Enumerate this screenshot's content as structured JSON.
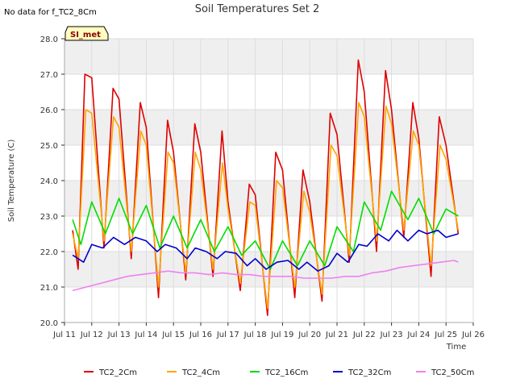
{
  "header": {
    "no_data_note": "No data for f_TC2_8Cm"
  },
  "badge": {
    "label": "SI_met",
    "fill": "#ffffc0",
    "text_color": "#8b0000"
  },
  "chart_data": {
    "type": "line",
    "title": "Soil Temperatures Set 2",
    "xlabel": "Time",
    "ylabel": "Soil Temperature (C)",
    "xlim": [
      11,
      26
    ],
    "ylim": [
      20.0,
      28.0
    ],
    "x_ticks": [
      11,
      12,
      13,
      14,
      15,
      16,
      17,
      18,
      19,
      20,
      21,
      22,
      23,
      24,
      25,
      26
    ],
    "x_tick_labels": [
      "Jul 11",
      "Jul 12",
      "Jul 13",
      "Jul 14",
      "Jul 15",
      "Jul 16",
      "Jul 17",
      "Jul 18",
      "Jul 19",
      "Jul 20",
      "Jul 21",
      "Jul 22",
      "Jul 23",
      "Jul 24",
      "Jul 25",
      "Jul 26"
    ],
    "y_ticks": [
      20.0,
      21.0,
      22.0,
      23.0,
      24.0,
      25.0,
      26.0,
      27.0,
      28.0
    ],
    "y_tick_labels": [
      "20.0",
      "21.0",
      "22.0",
      "23.0",
      "24.0",
      "25.0",
      "26.0",
      "27.0",
      "28.0"
    ],
    "grid": true,
    "background_bands": true,
    "legend_position": "bottom-center",
    "series": [
      {
        "name": "TC2_2Cm",
        "color": "#dd0000",
        "x": [
          11.3,
          11.5,
          11.75,
          12.0,
          12.45,
          12.78,
          13.0,
          13.45,
          13.78,
          14.0,
          14.45,
          14.78,
          15.0,
          15.45,
          15.78,
          16.0,
          16.45,
          16.78,
          17.0,
          17.45,
          17.78,
          18.0,
          18.45,
          18.75,
          19.0,
          19.45,
          19.75,
          20.0,
          20.45,
          20.75,
          21.0,
          21.45,
          21.78,
          22.0,
          22.45,
          22.78,
          23.0,
          23.45,
          23.78,
          24.0,
          24.45,
          24.75,
          25.0,
          25.45
        ],
        "y": [
          22.6,
          21.5,
          27.0,
          26.9,
          22.1,
          26.6,
          26.3,
          21.8,
          26.2,
          25.5,
          20.7,
          25.7,
          24.8,
          21.2,
          25.6,
          24.8,
          21.3,
          25.4,
          23.4,
          20.9,
          23.9,
          23.6,
          20.2,
          24.8,
          24.3,
          20.7,
          24.3,
          23.4,
          20.6,
          25.9,
          25.3,
          21.7,
          27.4,
          26.5,
          22.0,
          27.1,
          26.0,
          22.4,
          26.2,
          25.2,
          21.3,
          25.8,
          25.0,
          22.5
        ]
      },
      {
        "name": "TC2_4Cm",
        "color": "#ffa500",
        "x": [
          11.3,
          11.5,
          11.78,
          12.0,
          12.45,
          12.8,
          13.0,
          13.45,
          13.8,
          14.0,
          14.45,
          14.8,
          15.0,
          15.45,
          15.8,
          16.0,
          16.45,
          16.8,
          17.0,
          17.45,
          17.8,
          18.0,
          18.45,
          18.78,
          19.0,
          19.45,
          19.78,
          20.0,
          20.45,
          20.78,
          21.0,
          21.45,
          21.8,
          22.0,
          22.45,
          22.8,
          23.0,
          23.45,
          23.8,
          24.0,
          24.45,
          24.78,
          25.0,
          25.45
        ],
        "y": [
          22.5,
          21.8,
          26.0,
          25.9,
          22.3,
          25.8,
          25.5,
          22.0,
          25.4,
          25.0,
          21.0,
          24.8,
          24.5,
          21.4,
          24.8,
          24.3,
          21.5,
          24.5,
          23.2,
          21.1,
          23.4,
          23.3,
          20.4,
          24.0,
          23.8,
          21.0,
          23.7,
          23.1,
          20.8,
          25.0,
          24.7,
          21.9,
          26.2,
          25.8,
          22.3,
          26.1,
          25.6,
          22.6,
          25.4,
          25.0,
          21.6,
          25.0,
          24.6,
          22.6
        ]
      },
      {
        "name": "TC2_16Cm",
        "color": "#00dd00",
        "x": [
          11.3,
          11.6,
          12.0,
          12.5,
          13.0,
          13.5,
          14.0,
          14.5,
          15.0,
          15.5,
          16.0,
          16.5,
          17.0,
          17.5,
          18.0,
          18.55,
          19.0,
          19.55,
          20.0,
          20.55,
          21.0,
          21.6,
          22.0,
          22.6,
          23.0,
          23.6,
          24.0,
          24.55,
          25.0,
          25.45
        ],
        "y": [
          22.9,
          22.2,
          23.4,
          22.5,
          23.5,
          22.5,
          23.3,
          22.1,
          23.0,
          22.1,
          22.9,
          22.0,
          22.7,
          21.9,
          22.3,
          21.5,
          22.3,
          21.6,
          22.3,
          21.6,
          22.7,
          22.0,
          23.4,
          22.6,
          23.7,
          22.9,
          23.5,
          22.5,
          23.2,
          23.0
        ]
      },
      {
        "name": "TC2_32Cm",
        "color": "#0000cc",
        "x": [
          11.3,
          11.7,
          12.0,
          12.4,
          12.8,
          13.2,
          13.6,
          14.0,
          14.4,
          14.7,
          15.1,
          15.5,
          15.8,
          16.2,
          16.6,
          16.9,
          17.3,
          17.7,
          18.0,
          18.4,
          18.8,
          19.2,
          19.6,
          19.9,
          20.3,
          20.7,
          21.0,
          21.4,
          21.8,
          22.1,
          22.5,
          22.9,
          23.2,
          23.6,
          24.0,
          24.3,
          24.7,
          25.0,
          25.45
        ],
        "y": [
          21.9,
          21.7,
          22.2,
          22.1,
          22.4,
          22.2,
          22.4,
          22.3,
          22.0,
          22.2,
          22.1,
          21.8,
          22.1,
          22.0,
          21.8,
          22.0,
          21.95,
          21.6,
          21.8,
          21.5,
          21.7,
          21.75,
          21.5,
          21.7,
          21.45,
          21.6,
          21.95,
          21.7,
          22.2,
          22.15,
          22.5,
          22.3,
          22.6,
          22.3,
          22.6,
          22.5,
          22.6,
          22.4,
          22.5
        ]
      },
      {
        "name": "TC2_50Cm",
        "color": "#ee82ee",
        "x": [
          11.3,
          11.8,
          12.3,
          12.8,
          13.3,
          13.8,
          14.3,
          14.8,
          15.3,
          15.8,
          16.3,
          16.8,
          17.3,
          17.8,
          18.3,
          18.8,
          19.3,
          19.8,
          20.3,
          20.8,
          21.3,
          21.8,
          22.3,
          22.8,
          23.3,
          23.8,
          24.3,
          24.8,
          25.3,
          25.45
        ],
        "y": [
          20.9,
          21.0,
          21.1,
          21.2,
          21.3,
          21.35,
          21.4,
          21.45,
          21.4,
          21.4,
          21.35,
          21.4,
          21.35,
          21.35,
          21.3,
          21.3,
          21.3,
          21.25,
          21.25,
          21.25,
          21.3,
          21.3,
          21.4,
          21.45,
          21.55,
          21.6,
          21.65,
          21.7,
          21.75,
          21.7
        ]
      }
    ]
  }
}
